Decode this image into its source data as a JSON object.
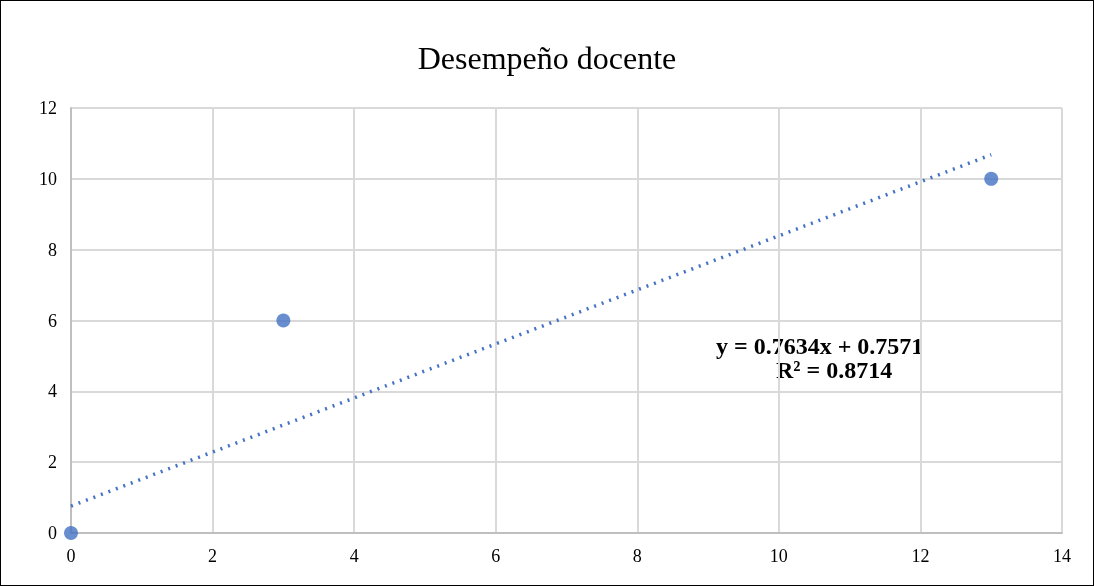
{
  "chart_data": {
    "type": "scatter",
    "title": "Desempeño docente",
    "x": [
      0,
      3,
      13
    ],
    "series": [
      {
        "color": "#4472c4",
        "values": [
          0,
          6,
          10
        ],
        "marker": "circle"
      },
      {
        "type": "line",
        "color": "#4472c4",
        "x": [
          0,
          13
        ],
        "values": [
          0.76,
          10.68
        ],
        "marker": "none",
        "line_style": "dotted"
      }
    ],
    "xlim": [
      0,
      14
    ],
    "xticks": [
      0,
      2,
      4,
      6,
      8,
      10,
      12,
      14
    ],
    "ylim": [
      0,
      12
    ],
    "yticks": [
      0,
      2,
      4,
      6,
      8,
      10,
      12
    ],
    "grid": true,
    "annotations": [
      "y = 0.7634x + 0.7571",
      "R² = 0.8714"
    ]
  }
}
